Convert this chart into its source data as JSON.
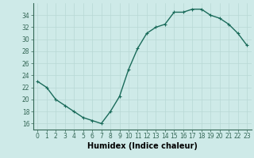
{
  "x": [
    0,
    1,
    2,
    3,
    4,
    5,
    6,
    7,
    8,
    9,
    10,
    11,
    12,
    13,
    14,
    15,
    16,
    17,
    18,
    19,
    20,
    21,
    22,
    23
  ],
  "y": [
    23,
    22,
    20,
    19,
    18,
    17,
    16.5,
    16,
    18,
    20.5,
    25,
    28.5,
    31,
    32,
    32.5,
    34.5,
    34.5,
    35,
    35,
    34,
    33.5,
    32.5,
    31,
    29
  ],
  "line_color": "#1a6b5a",
  "marker": "+",
  "marker_size": 3.5,
  "background_color": "#ceeae8",
  "grid_color": "#b8d8d5",
  "xlabel": "Humidex (Indice chaleur)",
  "xlabel_fontsize": 7,
  "xlim": [
    -0.5,
    23.5
  ],
  "ylim": [
    15,
    36
  ],
  "yticks": [
    16,
    18,
    20,
    22,
    24,
    26,
    28,
    30,
    32,
    34
  ],
  "xticks": [
    0,
    1,
    2,
    3,
    4,
    5,
    6,
    7,
    8,
    9,
    10,
    11,
    12,
    13,
    14,
    15,
    16,
    17,
    18,
    19,
    20,
    21,
    22,
    23
  ],
  "tick_fontsize": 5.5,
  "line_width": 1.0
}
